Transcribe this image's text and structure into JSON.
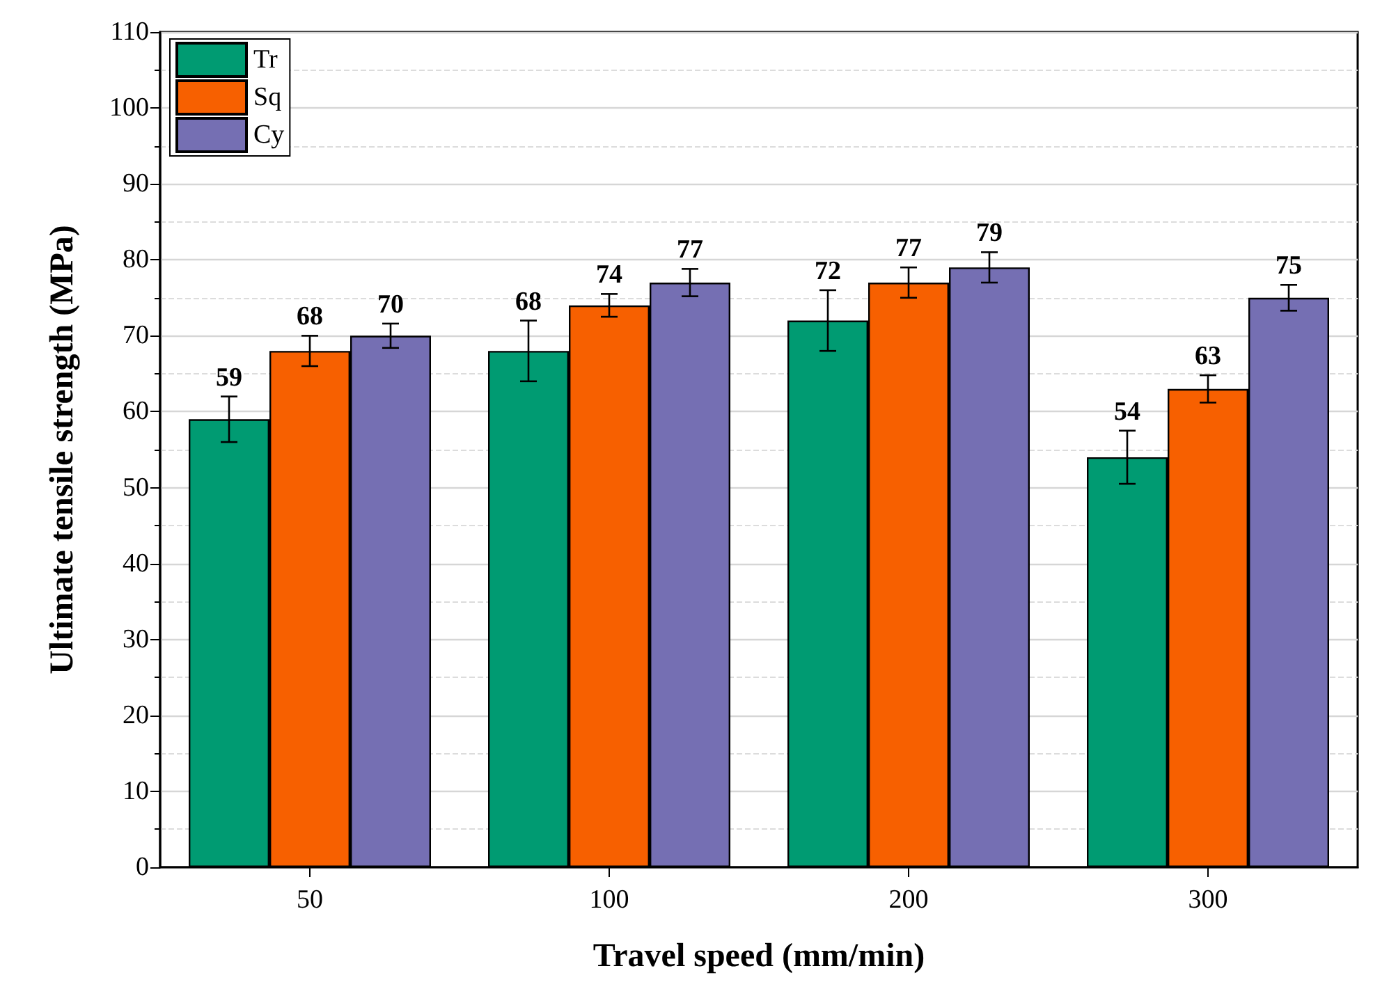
{
  "chart_data": {
    "type": "bar",
    "xlabel": "Travel speed (mm/min)",
    "ylabel": "Ultimate tensile strength (MPa)",
    "categories": [
      "50",
      "100",
      "200",
      "300"
    ],
    "series": [
      {
        "name": "Tr",
        "color": "#009b72",
        "values": [
          59,
          68,
          72,
          54
        ],
        "errors": [
          3,
          4,
          4,
          3.5
        ]
      },
      {
        "name": "Sq",
        "color": "#f76000",
        "values": [
          68,
          74,
          77,
          63
        ],
        "errors": [
          2,
          1.5,
          2,
          1.8
        ]
      },
      {
        "name": "Cy",
        "color": "#756fb3",
        "values": [
          70,
          77,
          79,
          75
        ],
        "errors": [
          1.6,
          1.8,
          2,
          1.7
        ]
      }
    ],
    "ylim": [
      0,
      110
    ],
    "yticks": [
      0,
      10,
      20,
      30,
      40,
      50,
      60,
      70,
      80,
      90,
      100,
      110
    ],
    "grid": "y",
    "legend": "top left",
    "data_labels": true
  }
}
